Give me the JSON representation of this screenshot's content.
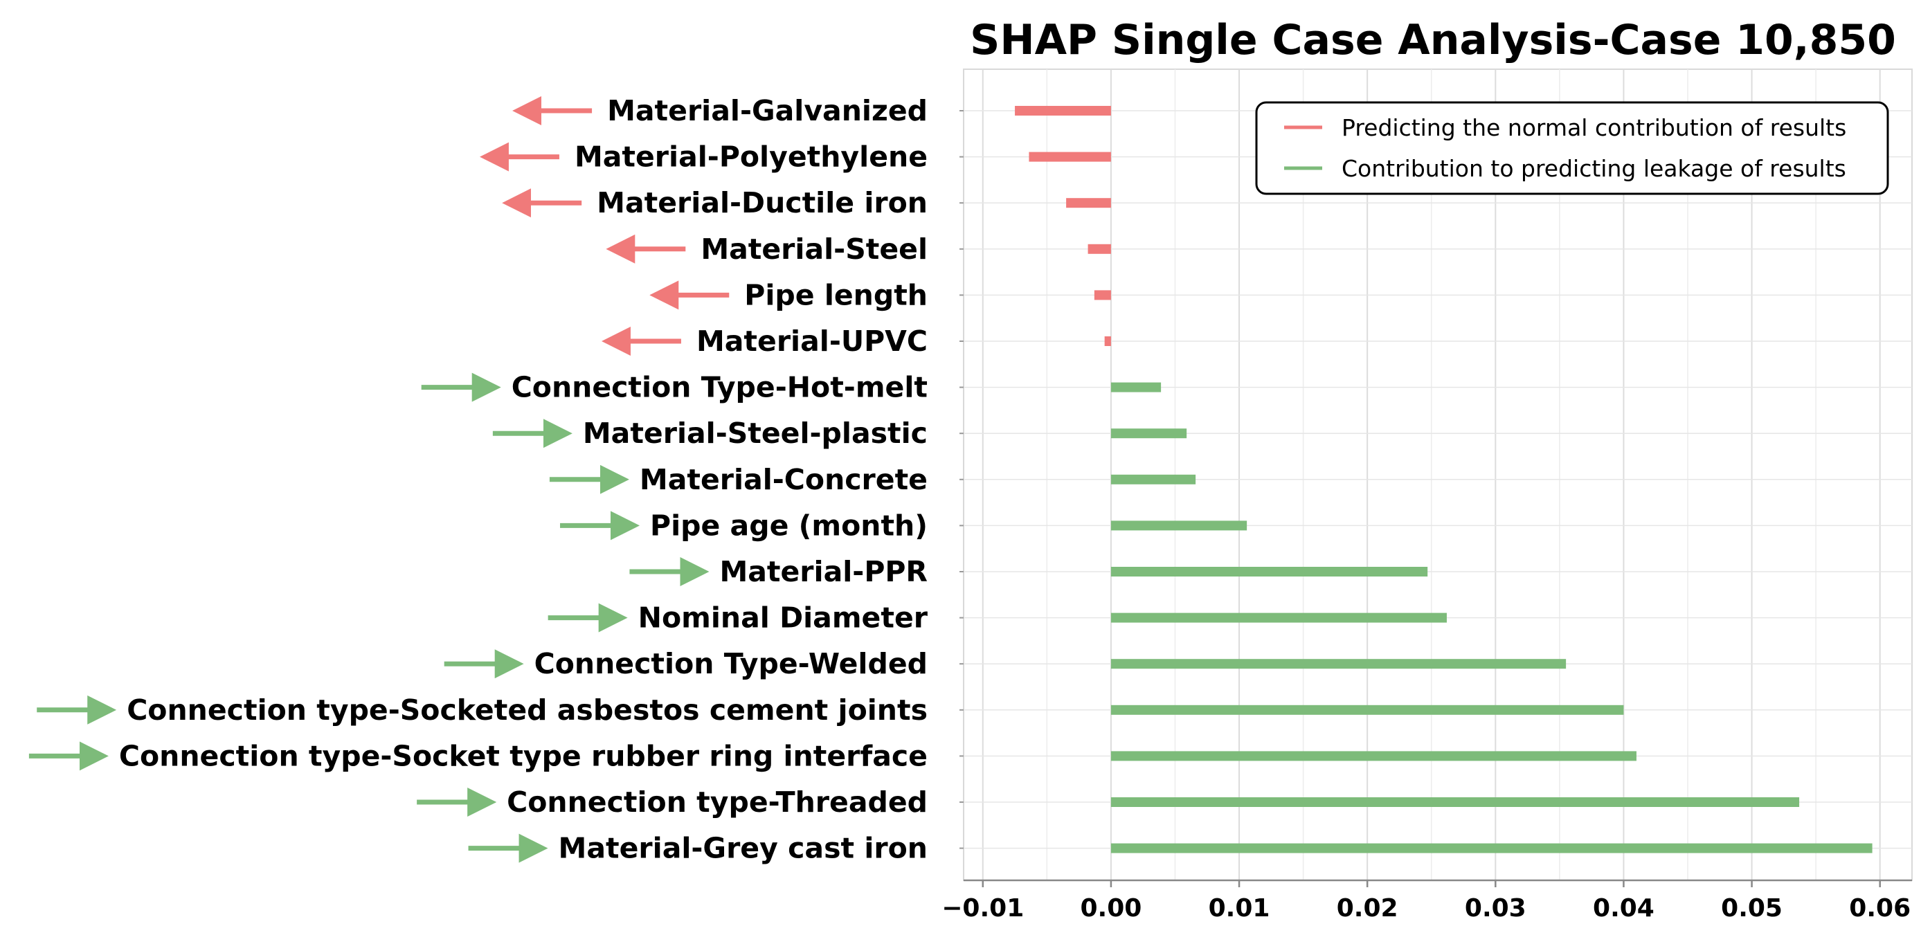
{
  "chart_data": {
    "type": "bar",
    "orientation": "horizontal",
    "title": "SHAP Single Case Analysis-Case 10,850",
    "xlabel": "",
    "ylabel": "",
    "xlim": [
      -0.0115,
      0.0625
    ],
    "grid": true,
    "x_ticks": [
      -0.01,
      0.0,
      0.01,
      0.02,
      0.03,
      0.04,
      0.05,
      0.06
    ],
    "x_tick_labels": [
      "−0.01",
      "0.00",
      "0.01",
      "0.02",
      "0.03",
      "0.04",
      "0.05",
      "0.06"
    ],
    "colors": {
      "negative": "#f07a7a",
      "positive": "#7dbb7a"
    },
    "legend": {
      "position": "top-right",
      "entries": [
        {
          "label": "Predicting the normal contribution of results",
          "color": "#f07a7a"
        },
        {
          "label": "Contribution to predicting leakage of results",
          "color": "#7dbb7a"
        }
      ]
    },
    "categories": [
      "Material-Galvanized",
      "Material-Polyethylene",
      "Material-Ductile  iron",
      "Material-Steel",
      "Pipe length",
      "Material-UPVC",
      "Connection Type-Hot-melt",
      "Material-Steel-plastic",
      "Material-Concrete",
      "Pipe age (month)",
      "Material-PPR",
      "Nominal Diameter",
      "Connection Type-Welded",
      "Connection type-Socketed asbestos cement joints",
      "Connection type-Socket type rubber ring interface",
      "Connection type-Threaded",
      "Material-Grey cast iron"
    ],
    "values": [
      -0.0075,
      -0.0064,
      -0.0035,
      -0.0018,
      -0.0013,
      -0.0005,
      0.0039,
      0.0059,
      0.0066,
      0.0106,
      0.0247,
      0.0262,
      0.0355,
      0.04,
      0.041,
      0.0537,
      0.0594
    ],
    "arrow_direction": [
      "left",
      "left",
      "left",
      "left",
      "left",
      "left",
      "right",
      "right",
      "right",
      "right",
      "right",
      "right",
      "right",
      "right",
      "right",
      "right",
      "right"
    ]
  }
}
